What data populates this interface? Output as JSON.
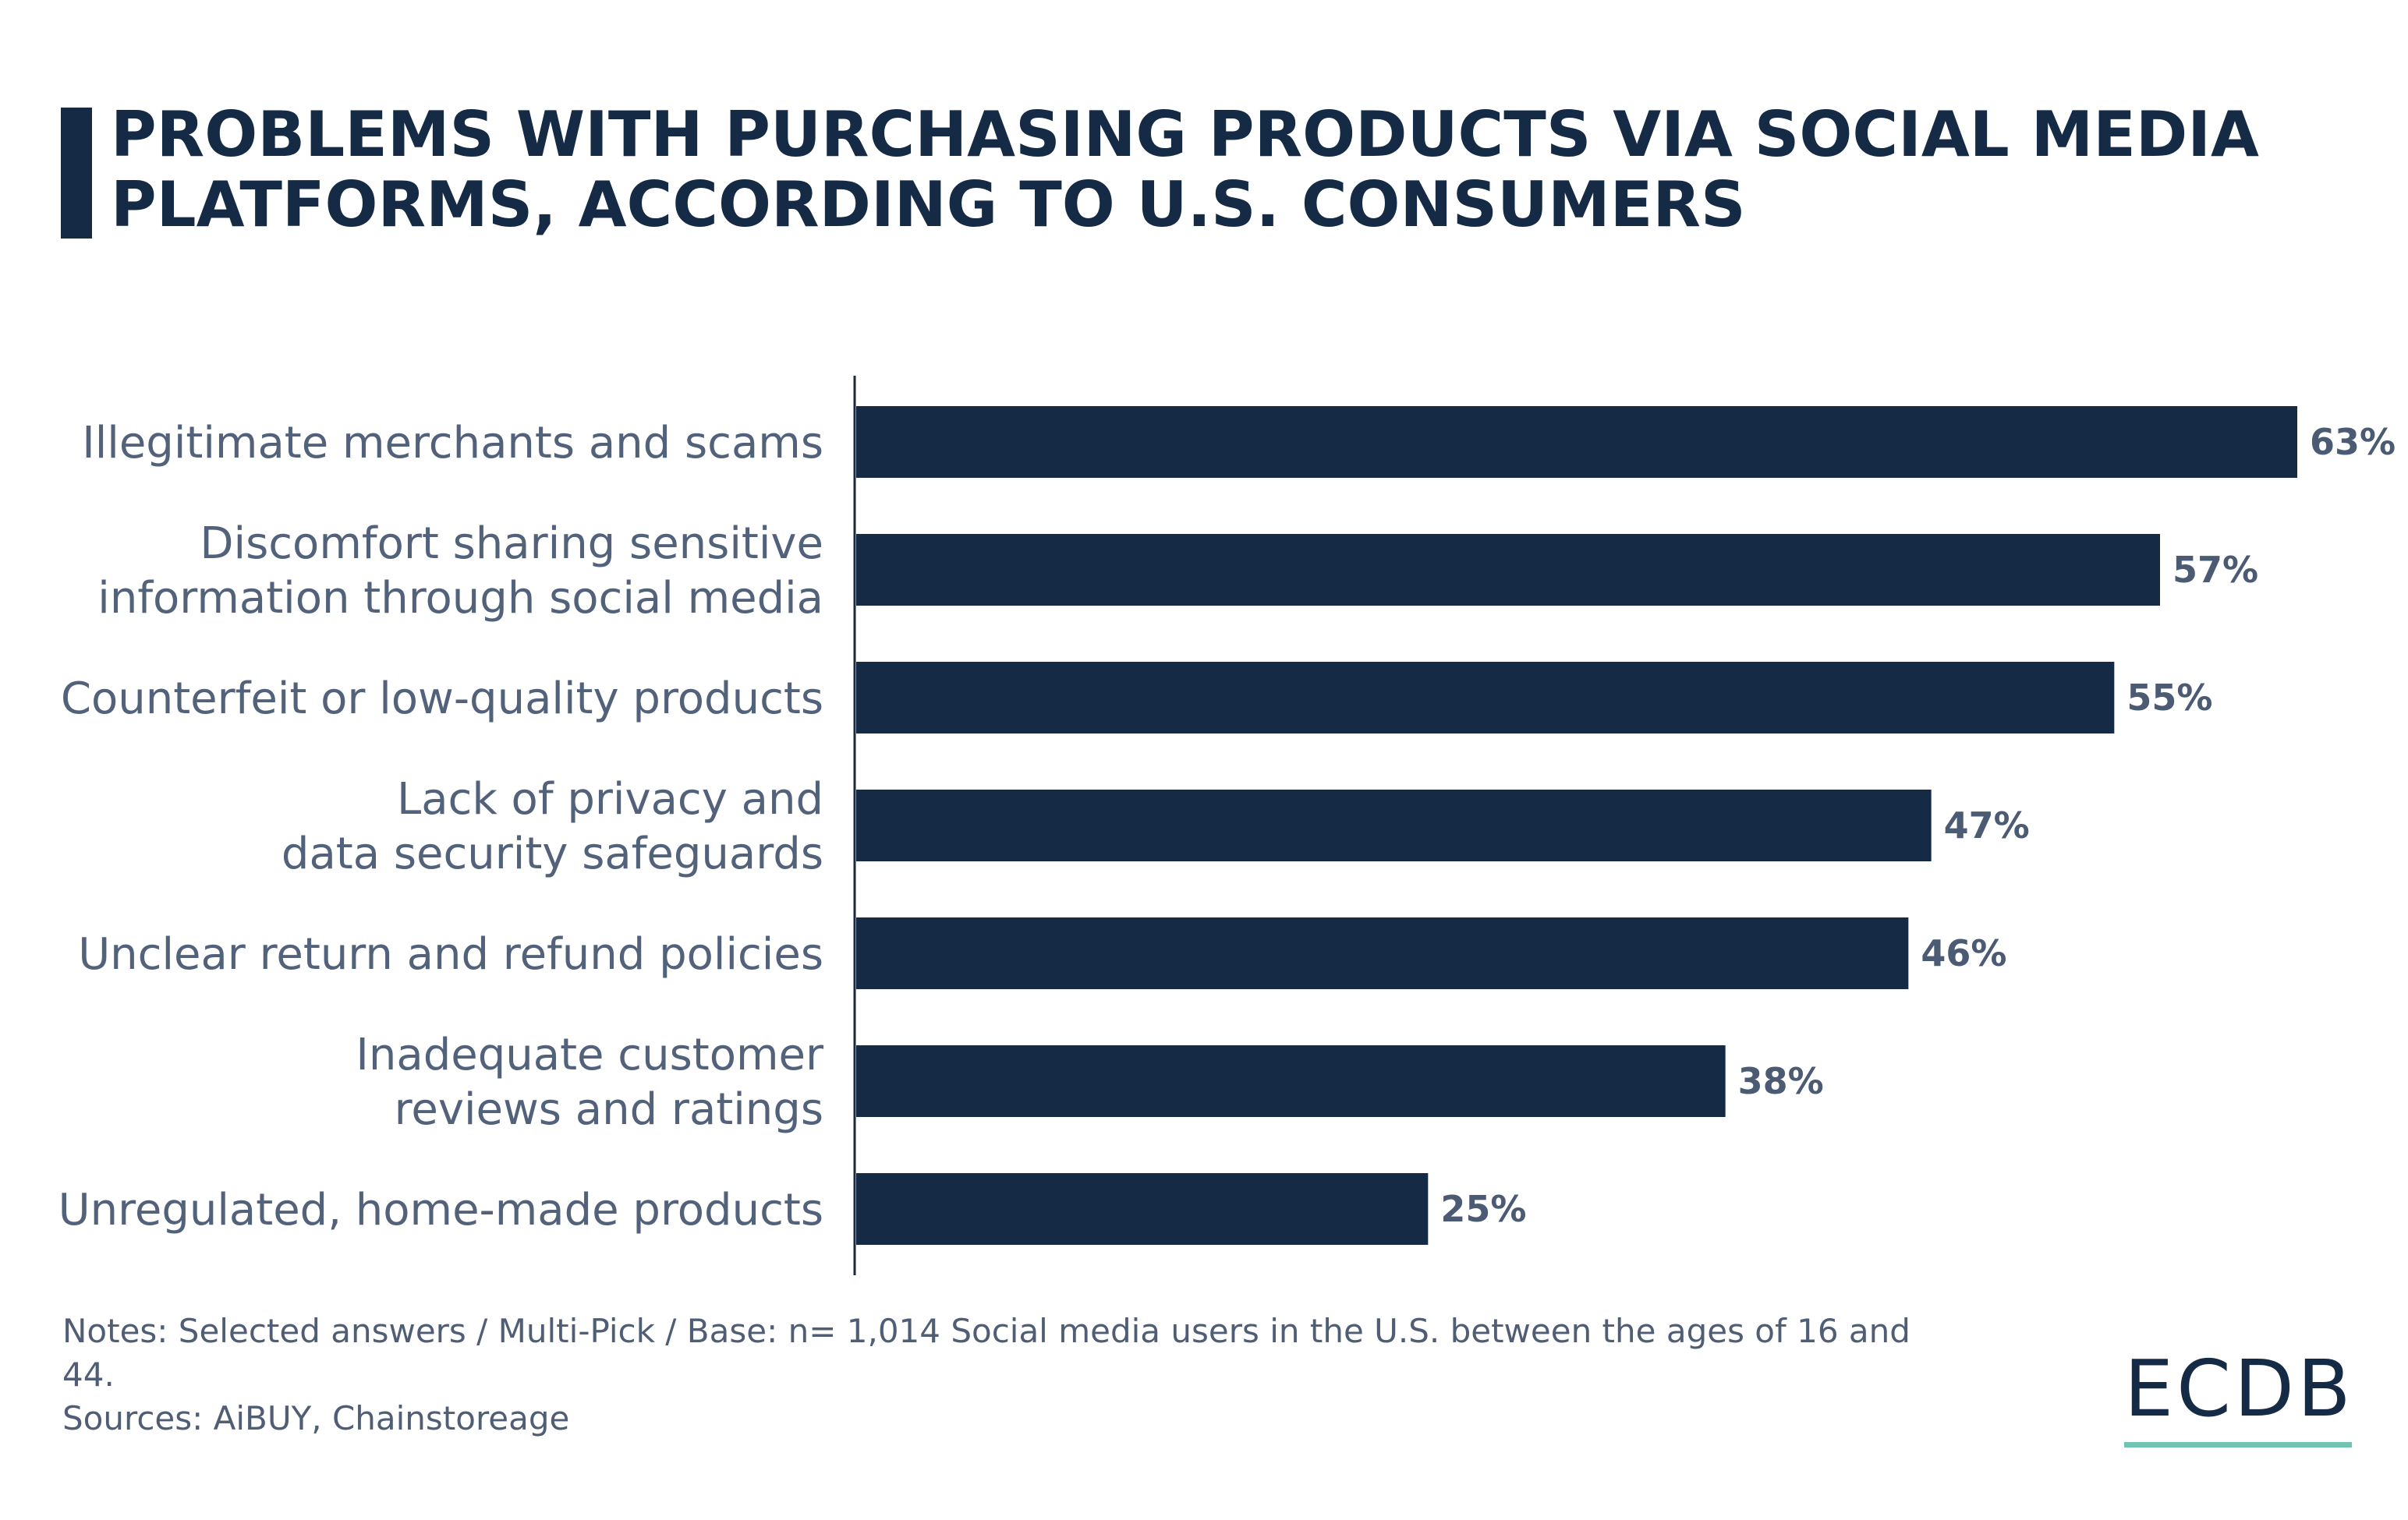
{
  "title_lines": [
    "PROBLEMS WITH PURCHASING PRODUCTS VIA SOCIAL MEDIA",
    "PLATFORMS, ACCORDING TO U.S. CONSUMERS"
  ],
  "colors": {
    "bar": "#152a45",
    "accent_line": "#72c4b2"
  },
  "chart_data": {
    "type": "bar",
    "orientation": "horizontal",
    "title": "PROBLEMS WITH PURCHASING PRODUCTS VIA SOCIAL MEDIA PLATFORMS, ACCORDING TO U.S. CONSUMERS",
    "categories": [
      [
        "Illegitimate merchants and scams"
      ],
      [
        "Discomfort sharing sensitive",
        "information through social media"
      ],
      [
        "Counterfeit or low-quality products"
      ],
      [
        "Lack of privacy and",
        "data security safeguards"
      ],
      [
        "Unclear return and refund policies"
      ],
      [
        "Inadequate customer",
        "reviews and ratings"
      ],
      [
        "Unregulated, home-made products"
      ]
    ],
    "values": [
      63,
      57,
      55,
      47,
      46,
      38,
      25
    ],
    "value_labels": [
      "63%",
      "57%",
      "55%",
      "47%",
      "46%",
      "38%",
      "25%"
    ],
    "unit": "%",
    "xlim": [
      0,
      63
    ],
    "grid": false,
    "legend": "none"
  },
  "notes": {
    "notes_text": "Notes: Selected answers / Multi-Pick / Base: n= 1,014 Social media users in the U.S. between the ages of 16 and 44.",
    "sources_text": "Sources: AiBUY, Chainstoreage"
  },
  "logo": {
    "text": "ECDB"
  }
}
